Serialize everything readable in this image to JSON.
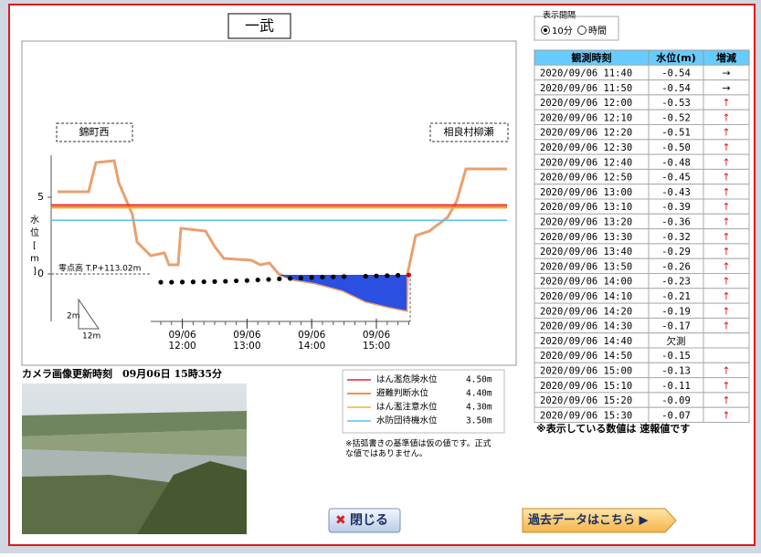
{
  "title": "一武",
  "interval": {
    "label": "表示間隔",
    "options": [
      "10分",
      "時間"
    ],
    "selected": 0
  },
  "chart": {
    "stations": [
      "錦町西",
      "相良村柳瀬"
    ],
    "y_label": "水位[m]",
    "yticks": [
      5,
      0
    ],
    "zero_note": "零点高 T.P+113.02m",
    "scale": [
      "2m",
      "12m"
    ],
    "xticks": [
      {
        "date": "09/06",
        "time": "12:00"
      },
      {
        "date": "09/06",
        "time": "13:00"
      },
      {
        "date": "09/06",
        "time": "14:00"
      },
      {
        "date": "09/06",
        "time": "15:00"
      }
    ]
  },
  "legend": [
    {
      "name": "はん濫危険水位",
      "level": 4.5,
      "level_label": "4.50m",
      "color": "#e8202a"
    },
    {
      "name": "避難判断水位",
      "level": 4.4,
      "level_label": "4.40m",
      "color": "#f06a10"
    },
    {
      "name": "はん濫注意水位",
      "level": 4.3,
      "level_label": "4.30m",
      "color": "#f5b040"
    },
    {
      "name": "水防団待機水位",
      "level": 3.5,
      "level_label": "3.50m",
      "color": "#56c2ee"
    }
  ],
  "legend_note": [
    "※括弧書きの基準値は仮の値です。正式",
    "な値ではありません。"
  ],
  "camera_caption": "カメラ画像更新時刻　09月06日 15時35分",
  "table": {
    "header": [
      "観測時刻",
      "水位(m)",
      "増減"
    ],
    "rows": [
      {
        "time": "2020/09/06 11:40",
        "level": "-0.54",
        "trend": "→"
      },
      {
        "time": "2020/09/06 11:50",
        "level": "-0.54",
        "trend": "→"
      },
      {
        "time": "2020/09/06 12:00",
        "level": "-0.53",
        "trend": "↑"
      },
      {
        "time": "2020/09/06 12:10",
        "level": "-0.52",
        "trend": "↑"
      },
      {
        "time": "2020/09/06 12:20",
        "level": "-0.51",
        "trend": "↑"
      },
      {
        "time": "2020/09/06 12:30",
        "level": "-0.50",
        "trend": "↑"
      },
      {
        "time": "2020/09/06 12:40",
        "level": "-0.48",
        "trend": "↑"
      },
      {
        "time": "2020/09/06 12:50",
        "level": "-0.45",
        "trend": "↑"
      },
      {
        "time": "2020/09/06 13:00",
        "level": "-0.43",
        "trend": "↑"
      },
      {
        "time": "2020/09/06 13:10",
        "level": "-0.39",
        "trend": "↑"
      },
      {
        "time": "2020/09/06 13:20",
        "level": "-0.36",
        "trend": "↑"
      },
      {
        "time": "2020/09/06 13:30",
        "level": "-0.32",
        "trend": "↑"
      },
      {
        "time": "2020/09/06 13:40",
        "level": "-0.29",
        "trend": "↑"
      },
      {
        "time": "2020/09/06 13:50",
        "level": "-0.26",
        "trend": "↑"
      },
      {
        "time": "2020/09/06 14:00",
        "level": "-0.23",
        "trend": "↑"
      },
      {
        "time": "2020/09/06 14:10",
        "level": "-0.21",
        "trend": "↑"
      },
      {
        "time": "2020/09/06 14:20",
        "level": "-0.19",
        "trend": "↑"
      },
      {
        "time": "2020/09/06 14:30",
        "level": "-0.17",
        "trend": "↑"
      },
      {
        "time": "2020/09/06 14:40",
        "level": "欠測"
      },
      {
        "time": "2020/09/06 14:50",
        "level": "-0.15"
      },
      {
        "time": "2020/09/06 15:00",
        "level": "-0.13",
        "trend": "↑"
      },
      {
        "time": "2020/09/06 15:10",
        "level": "-0.11",
        "trend": "↑"
      },
      {
        "time": "2020/09/06 15:20",
        "level": "-0.09",
        "trend": "↑"
      },
      {
        "time": "2020/09/06 15:30",
        "level": "-0.07",
        "trend": "↑"
      }
    ]
  },
  "table_note": "※表示している数値は 速報値です",
  "buttons": {
    "close": "閉じる",
    "past": "過去データはこちら ▶"
  }
}
